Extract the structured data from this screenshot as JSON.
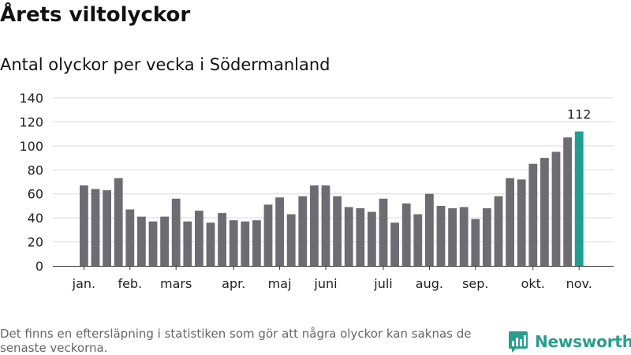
{
  "title": "Årets viltolyckor",
  "subtitle": "Antal olyckor per vecka i Södermanland",
  "footnote": "Det finns en eftersläpning i statistiken som gör att några olyckor kan saknas de senaste veckorna.",
  "logo": {
    "text": "Newsworthy"
  },
  "colors": {
    "bar": "#6d6c72",
    "highlight": "#1f9e92",
    "grid": "#d9d9d9",
    "axis": "#333333"
  },
  "chart_data": {
    "type": "bar",
    "title": "Antal olyckor per vecka i Södermanland",
    "xlabel": "",
    "ylabel": "",
    "ylim": [
      0,
      140
    ],
    "yticks": [
      0,
      20,
      40,
      60,
      80,
      100,
      120,
      140
    ],
    "grid": true,
    "values": [
      67,
      64,
      63,
      73,
      47,
      41,
      37,
      41,
      56,
      37,
      46,
      36,
      44,
      38,
      37,
      38,
      51,
      57,
      43,
      58,
      67,
      67,
      58,
      49,
      48,
      45,
      56,
      36,
      52,
      43,
      60,
      50,
      48,
      49,
      39,
      48,
      58,
      73,
      72,
      85,
      90,
      95,
      107,
      112
    ],
    "month_labels": [
      {
        "label": "jan.",
        "index": 0
      },
      {
        "label": "feb.",
        "index": 4
      },
      {
        "label": "mars",
        "index": 8
      },
      {
        "label": "apr.",
        "index": 13
      },
      {
        "label": "maj",
        "index": 17
      },
      {
        "label": "juni",
        "index": 21
      },
      {
        "label": "juli",
        "index": 26
      },
      {
        "label": "aug.",
        "index": 30
      },
      {
        "label": "sep.",
        "index": 34
      },
      {
        "label": "okt.",
        "index": 39
      },
      {
        "label": "nov.",
        "index": 43
      }
    ],
    "annotation": {
      "label": "112",
      "index": 43
    }
  }
}
